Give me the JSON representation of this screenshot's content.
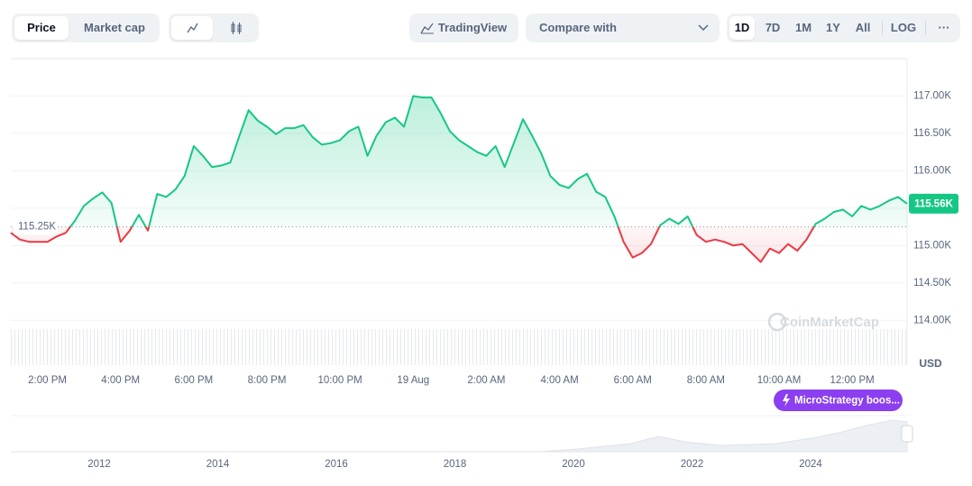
{
  "toolbar": {
    "tabs": [
      "Price",
      "Market cap"
    ],
    "tradingview": "TradingView",
    "compare": "Compare with",
    "ranges": [
      "1D",
      "7D",
      "1M",
      "1Y",
      "All"
    ],
    "log": "LOG",
    "more": "···"
  },
  "chart_data": {
    "type": "line",
    "categories": [
      null,
      null,
      null,
      null,
      "2:00 PM",
      null,
      null,
      null,
      null,
      null,
      null,
      null,
      "4:00 PM",
      null,
      null,
      null,
      null,
      null,
      null,
      null,
      "6:00 PM",
      null,
      null,
      null,
      null,
      null,
      null,
      null,
      "8:00 PM",
      null,
      null,
      null,
      null,
      null,
      null,
      null,
      "10:00 PM",
      null,
      null,
      null,
      null,
      null,
      null,
      null,
      "19 Aug",
      null,
      null,
      null,
      null,
      null,
      null,
      null,
      "2:00 AM",
      null,
      null,
      null,
      null,
      null,
      null,
      null,
      "4:00 AM",
      null,
      null,
      null,
      null,
      null,
      null,
      null,
      "6:00 AM",
      null,
      null,
      null,
      null,
      null,
      null,
      null,
      "8:00 AM",
      null,
      null,
      null,
      null,
      null,
      null,
      null,
      "10:00 AM",
      null,
      null,
      null,
      null,
      null,
      null,
      null,
      "12:00 PM",
      null,
      null,
      null,
      null,
      null,
      null
    ],
    "values": [
      115170,
      115080,
      115050,
      115050,
      115050,
      115120,
      115170,
      115330,
      115530,
      115630,
      115710,
      115570,
      115050,
      115200,
      115410,
      115200,
      115690,
      115650,
      115750,
      115930,
      116330,
      116200,
      116050,
      116070,
      116110,
      116470,
      116810,
      116670,
      116590,
      116490,
      116570,
      116570,
      116610,
      116450,
      116350,
      116370,
      116410,
      116530,
      116590,
      116200,
      116470,
      116650,
      116710,
      116590,
      117000,
      116980,
      116980,
      116770,
      116530,
      116410,
      116330,
      116250,
      116200,
      116330,
      116050,
      116370,
      116690,
      116470,
      116230,
      115930,
      115810,
      115770,
      115890,
      115960,
      115720,
      115650,
      115390,
      115050,
      114840,
      114900,
      115020,
      115270,
      115360,
      115290,
      115390,
      115140,
      115050,
      115080,
      115050,
      115000,
      115020,
      114900,
      114780,
      114960,
      114900,
      115020,
      114930,
      115080,
      115290,
      115360,
      115450,
      115480,
      115390,
      115530,
      115480,
      115530,
      115600,
      115650,
      115560
    ],
    "ylim": [
      113400,
      117500
    ],
    "yticks": [
      {
        "value": 114000,
        "label": "114.00K"
      },
      {
        "value": 114500,
        "label": "114.50K"
      },
      {
        "value": 115000,
        "label": "115.00K"
      },
      {
        "value": 115500,
        "label": "115.50K"
      },
      {
        "value": 116000,
        "label": "116.00K"
      },
      {
        "value": 116500,
        "label": "116.50K"
      },
      {
        "value": 117000,
        "label": "117.00K"
      }
    ],
    "grid": true,
    "baseline": {
      "value": 115250,
      "label": "115.25K"
    },
    "current_price": {
      "value": 115560,
      "label": "115.56K"
    },
    "y_unit": "USD",
    "colors": {
      "up": "#16c784",
      "down": "#ea3943"
    },
    "watermark": "CoinMarketCap",
    "annotation": "MicroStrategy boos..."
  },
  "overview": {
    "xticks": [
      "2012",
      "2014",
      "2016",
      "2018",
      "2020",
      "2022",
      "2024"
    ]
  }
}
